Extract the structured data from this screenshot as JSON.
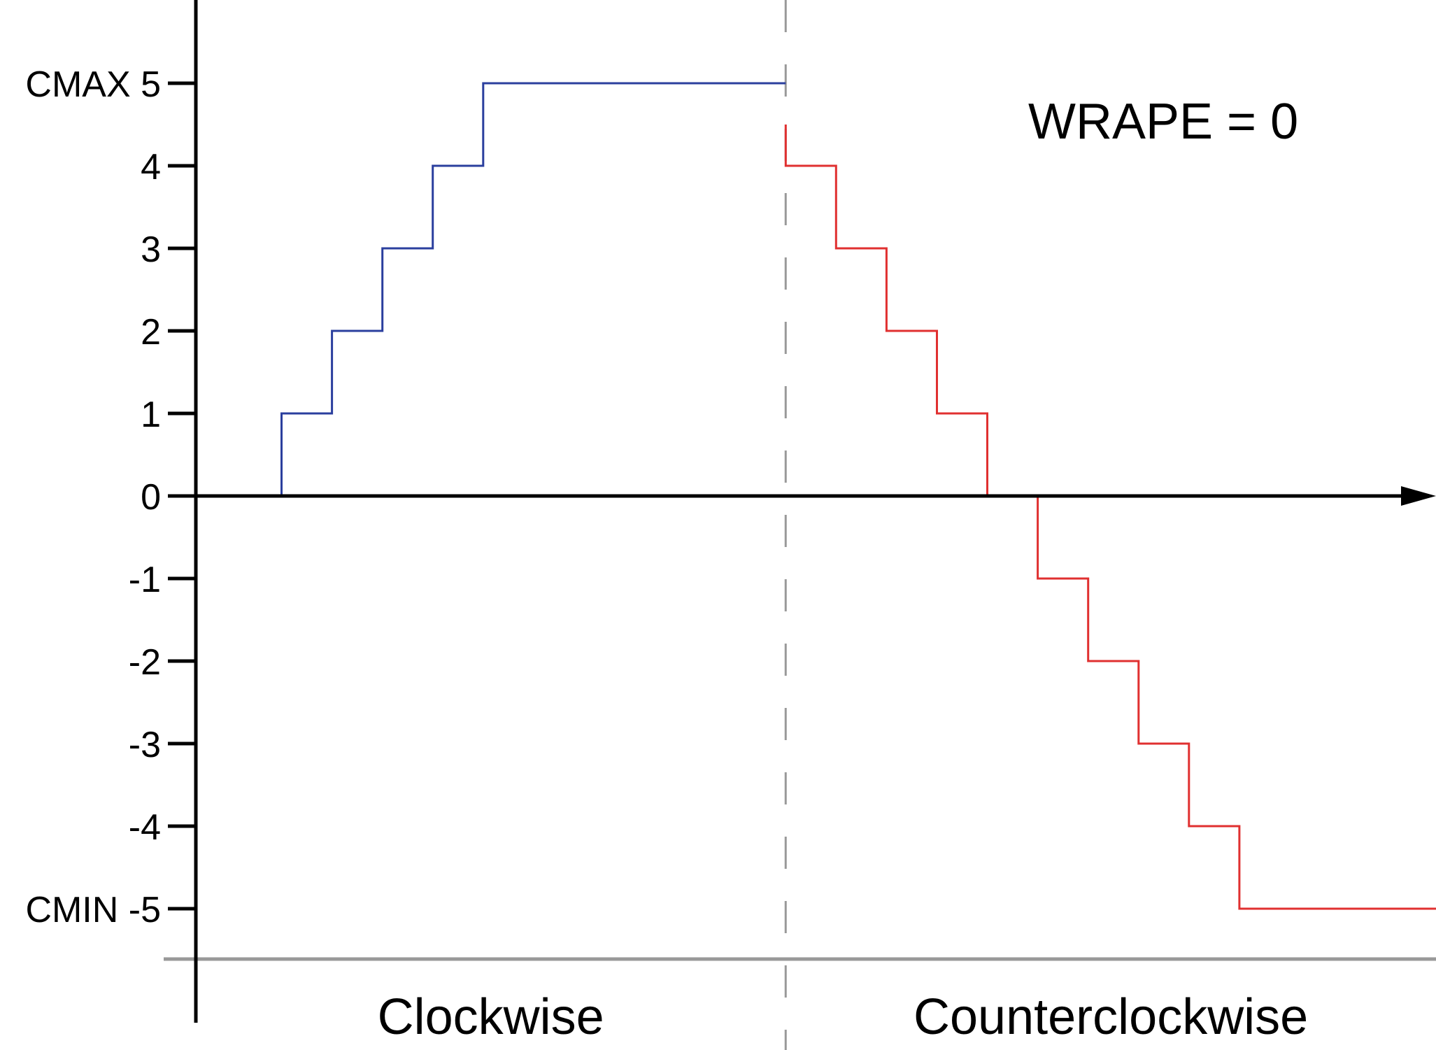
{
  "chart_data": {
    "type": "line",
    "step": true,
    "annotation": "WRAPE = 0",
    "yticks": [
      {
        "value": 5,
        "label": "CMAX 5"
      },
      {
        "value": 4,
        "label": "4"
      },
      {
        "value": 3,
        "label": "3"
      },
      {
        "value": 2,
        "label": "2"
      },
      {
        "value": 1,
        "label": "1"
      },
      {
        "value": 0,
        "label": "0"
      },
      {
        "value": -1,
        "label": "-1"
      },
      {
        "value": -2,
        "label": "-2"
      },
      {
        "value": -3,
        "label": "-3"
      },
      {
        "value": -4,
        "label": "-4"
      },
      {
        "value": -5,
        "label": "CMIN -5"
      }
    ],
    "ylim": [
      -5.6,
      5.6
    ],
    "xlim": [
      0,
      24.6
    ],
    "sections": [
      {
        "label": "Clockwise",
        "x_start": 0,
        "x_end": 11.7
      },
      {
        "label": "Counterclockwise",
        "x_start": 11.7,
        "x_end": 24.6
      }
    ],
    "divider_x": 11.7,
    "series": [
      {
        "color": "#2b3f9e",
        "points": [
          [
            1.7,
            0
          ],
          [
            1.7,
            1
          ],
          [
            2.7,
            1
          ],
          [
            2.7,
            2
          ],
          [
            3.7,
            2
          ],
          [
            3.7,
            3
          ],
          [
            4.7,
            3
          ],
          [
            4.7,
            4
          ],
          [
            5.7,
            4
          ],
          [
            5.7,
            5
          ],
          [
            11.7,
            5
          ]
        ]
      },
      {
        "color": "#e03030",
        "points": [
          [
            11.7,
            4.5
          ],
          [
            11.7,
            4
          ],
          [
            12.7,
            4
          ],
          [
            12.7,
            3
          ],
          [
            13.7,
            3
          ],
          [
            13.7,
            2
          ],
          [
            14.7,
            2
          ],
          [
            14.7,
            1
          ],
          [
            15.7,
            1
          ],
          [
            15.7,
            0
          ]
        ]
      },
      {
        "color": "#e03030",
        "points": [
          [
            16.7,
            0
          ],
          [
            16.7,
            -1
          ],
          [
            17.7,
            -1
          ],
          [
            17.7,
            -2
          ],
          [
            18.7,
            -2
          ],
          [
            18.7,
            -3
          ],
          [
            19.7,
            -3
          ],
          [
            19.7,
            -4
          ],
          [
            20.7,
            -4
          ],
          [
            20.7,
            -5
          ],
          [
            24.6,
            -5
          ]
        ]
      }
    ],
    "colors": {
      "axis": "#000000",
      "divider": "#999999",
      "baseline": "#999999"
    }
  }
}
